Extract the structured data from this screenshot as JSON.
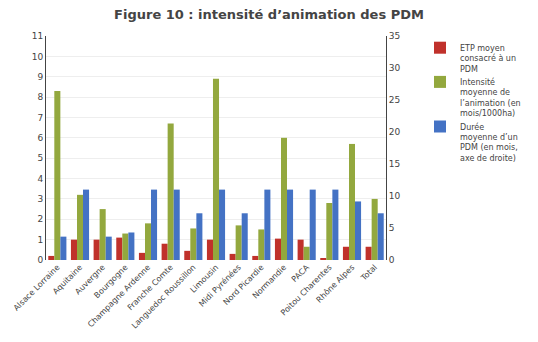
{
  "chart_data": {
    "type": "bar",
    "title": "Figure 10 : intensité d’animation des PDM",
    "categories": [
      "Alsace Lorraine",
      "Aquitaine",
      "Auvergne",
      "Bourgogne",
      "Champagne Ardenne",
      "Franche Comte",
      "Languedoc Roussillon",
      "Limousin",
      "Midi Pyrénées",
      "Nord Picardie",
      "Normandie",
      "PACA",
      "Poitou Charentes",
      "Rhône Alpes",
      "Total"
    ],
    "series": [
      {
        "name": "ETP moyen\nconsacré à un\nPDM",
        "color": "#c0312b",
        "values": [
          0.2,
          1.0,
          1.0,
          1.1,
          0.35,
          0.8,
          0.45,
          1.0,
          0.3,
          0.2,
          1.05,
          1.0,
          0.05,
          0.65,
          0.65
        ]
      },
      {
        "name": "Intensité\nmoyenne de\nl’animation (en\nmois/1000ha)",
        "color": "#93a83e",
        "values": [
          8.3,
          3.2,
          2.5,
          1.3,
          1.8,
          6.7,
          1.55,
          8.9,
          1.7,
          1.5,
          6.0,
          0.65,
          2.8,
          5.7,
          3.0
        ]
      },
      {
        "name": "Durée\nmoyenne d’un\nPDM (en mois,\naxe de droite)",
        "color": "#4472c4",
        "axis": "y2",
        "values": [
          3.65,
          11.0,
          3.65,
          4.3,
          11.0,
          11.0,
          7.3,
          11.0,
          7.3,
          11.0,
          11.0,
          11.0,
          11.0,
          9.15,
          7.3
        ]
      }
    ],
    "ylim": [
      0,
      11
    ],
    "yticks": [
      0,
      1,
      2,
      3,
      4,
      5,
      6,
      7,
      8,
      9,
      10,
      11
    ],
    "y2lim": [
      0,
      35
    ],
    "y2ticks": [
      0,
      5,
      10,
      15,
      20,
      25,
      30,
      35
    ],
    "grid": true,
    "legend": "upper right"
  }
}
